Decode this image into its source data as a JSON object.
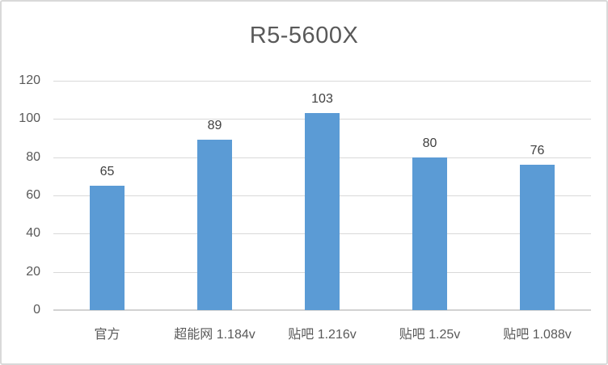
{
  "colors": {
    "bar_fill": "#5B9BD5",
    "gridline": "#D9D9D9",
    "baseline": "#D2D2D2",
    "border": "#D9D9D9",
    "title_text": "#595959",
    "axis_text": "#595959",
    "data_label_text": "#404040"
  },
  "chart_data": {
    "type": "bar",
    "title": "R5-5600X",
    "categories": [
      "官方",
      "超能网 1.184v",
      "贴吧 1.216v",
      "贴吧 1.25v",
      "贴吧 1.088v"
    ],
    "values": [
      65,
      89,
      103,
      80,
      76
    ],
    "xlabel": "",
    "ylabel": "",
    "ylim": [
      0,
      120
    ],
    "yticks": [
      0,
      20,
      40,
      60,
      80,
      100,
      120
    ],
    "grid": true,
    "legend": "none",
    "data_labels": true
  }
}
